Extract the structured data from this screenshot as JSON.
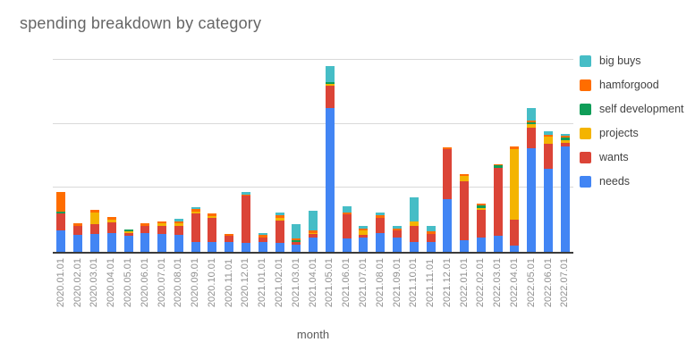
{
  "title": "spending breakdown by category",
  "xlabel": "month",
  "legend": [
    {
      "label": "big buys",
      "color": "#46bdc6"
    },
    {
      "label": "hamforgood",
      "color": "#ff6d00"
    },
    {
      "label": "self development",
      "color": "#0f9d58"
    },
    {
      "label": "projects",
      "color": "#f4b400"
    },
    {
      "label": "wants",
      "color": "#db4437"
    },
    {
      "label": "needs",
      "color": "#4285f4"
    }
  ],
  "chart_data": {
    "type": "bar",
    "stacked": true,
    "title": "spending breakdown by category",
    "xlabel": "month",
    "ylabel": "",
    "y_tick_labels_visible": false,
    "legend_position": "right",
    "ylim": [
      0,
      317
    ],
    "gridlines": [
      100,
      200,
      300
    ],
    "units_note": "no y-axis labels shown; values estimated in relative units where one gridline interval = 100",
    "categories": [
      "2020.01.01",
      "2020.02.01",
      "2020.03.01",
      "2020.04.01",
      "2020.05.01",
      "2020.06.01",
      "2020.07.01",
      "2020.08.01",
      "2020.09.01",
      "2020.10.01",
      "2020.11.01",
      "2020.12.01",
      "2021.01.01",
      "2021.02.01",
      "2021.03.01",
      "2021.04.01",
      "2021.05.01",
      "2021.06.01",
      "2021.07.01",
      "2021.08.01",
      "2021.09.01",
      "2021.10.01",
      "2021.11.01",
      "2021.12.01",
      "2022.01.01",
      "2022.02.01",
      "2022.03.01",
      "2022.04.01",
      "2022.05.01",
      "2022.06.01",
      "2022.07.01"
    ],
    "series": [
      {
        "name": "needs",
        "color": "#4285f4",
        "values": [
          33,
          26,
          28,
          29,
          25,
          30,
          28,
          27,
          16,
          15,
          15,
          14,
          15,
          14,
          11,
          22,
          224,
          21,
          22,
          29,
          23,
          16,
          15,
          82,
          18,
          23,
          25,
          10,
          162,
          130,
          164
        ]
      },
      {
        "name": "wants",
        "color": "#db4437",
        "values": [
          27,
          15,
          15,
          17,
          4,
          10,
          13,
          14,
          44,
          38,
          10,
          74,
          8,
          35,
          4,
          6,
          35,
          38,
          4,
          24,
          10,
          24,
          13,
          78,
          92,
          42,
          106,
          40,
          32,
          39,
          6
        ]
      },
      {
        "name": "projects",
        "color": "#f4b400",
        "values": [
          0,
          0,
          18,
          4,
          3,
          0,
          3,
          4,
          3,
          3,
          0,
          0,
          0,
          4,
          0,
          2,
          3,
          0,
          7,
          0,
          0,
          7,
          0,
          0,
          8,
          4,
          0,
          110,
          6,
          11,
          4
        ]
      },
      {
        "name": "self development",
        "color": "#0f9d58",
        "values": [
          3,
          0,
          0,
          0,
          3,
          0,
          0,
          0,
          0,
          0,
          0,
          0,
          0,
          0,
          3,
          0,
          3,
          0,
          0,
          0,
          0,
          0,
          0,
          0,
          0,
          3,
          4,
          0,
          2,
          0,
          4
        ]
      },
      {
        "name": "hamforgood",
        "color": "#ff6d00",
        "values": [
          30,
          4,
          4,
          4,
          0,
          4,
          4,
          3,
          4,
          4,
          3,
          2,
          3,
          4,
          3,
          3,
          0,
          3,
          4,
          4,
          3,
          0,
          4,
          3,
          3,
          4,
          2,
          4,
          3,
          3,
          4
        ]
      },
      {
        "name": "big buys",
        "color": "#46bdc6",
        "values": [
          0,
          0,
          0,
          0,
          0,
          0,
          0,
          3,
          3,
          0,
          0,
          3,
          3,
          4,
          23,
          31,
          25,
          9,
          4,
          4,
          5,
          38,
          9,
          0,
          0,
          0,
          0,
          0,
          19,
          5,
          2
        ]
      }
    ]
  }
}
